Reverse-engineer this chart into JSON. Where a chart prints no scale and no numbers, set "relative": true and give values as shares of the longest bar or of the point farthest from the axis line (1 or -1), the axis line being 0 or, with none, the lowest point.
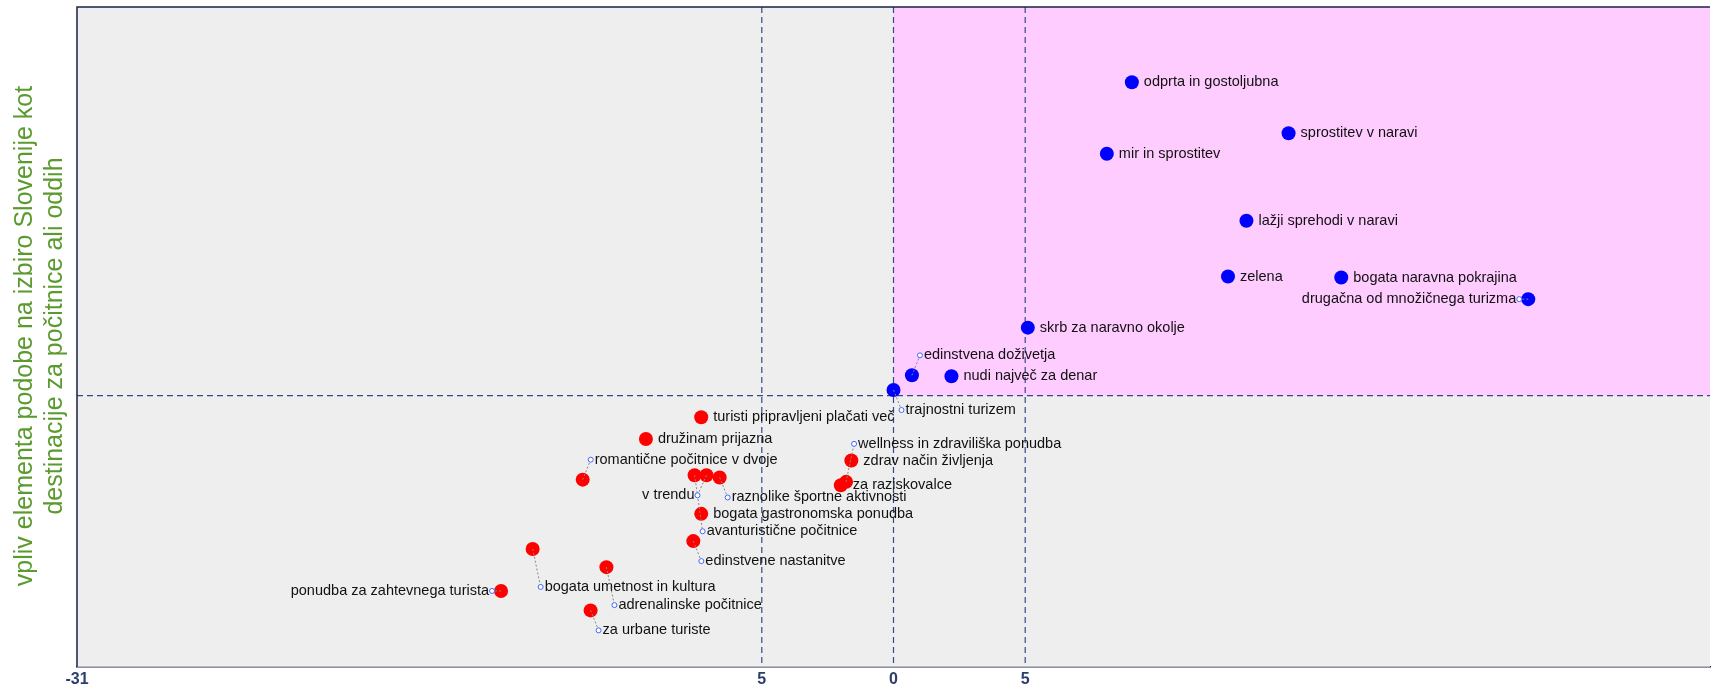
{
  "chart_data": {
    "type": "scatter",
    "ylabel": "vpliv elementa podobe na izbiro Slovenije kot destinacije za počitnice ali oddih",
    "relative": true,
    "xlim": [
      -31,
      31
    ],
    "xticks": [
      -31,
      {
        "value": -5,
        "label": "5"
      },
      0,
      5
    ],
    "tick_labels": "x",
    "legend": false,
    "marker": "circle",
    "series": [
      {
        "color": "#0000ff",
        "x": [
          9.05,
          15.0,
          8.1,
          13.4,
          17.0,
          12.7,
          24.1,
          5.1,
          0.7,
          2.2,
          0.0
        ],
        "values": [
          1.0,
          0.837,
          0.772,
          0.558,
          0.377,
          0.38,
          0.308,
          0.217,
          0.065,
          0.062,
          0.018
        ]
      },
      {
        "color": "#ff0000",
        "x": [
          -11.8,
          -7.3,
          -9.4,
          -6.6,
          -7.55,
          -7.1,
          -1.6,
          -1.8,
          -2.0,
          -7.3,
          -13.7,
          -7.6,
          -10.9,
          -11.5,
          -14.9
        ],
        "values": [
          -0.268,
          -0.069,
          -0.138,
          -0.261,
          -0.254,
          -0.254,
          -0.207,
          -0.275,
          -0.286,
          -0.377,
          -0.489,
          -0.464,
          -0.547,
          -0.685,
          -0.623
        ]
      }
    ],
    "ref_lines": [
      {
        "axis": "x",
        "value": -5,
        "color": "#334a8a",
        "line_style": "dashed"
      },
      {
        "axis": "x",
        "value": 0,
        "color": "#334a8a",
        "line_style": "dashed"
      },
      {
        "axis": "x",
        "value": 5,
        "color": "#334a8a",
        "line_style": "dashed"
      },
      {
        "axis": "y",
        "value": 0,
        "color": "#334a8a",
        "line_style": "dashed"
      }
    ],
    "bands": [
      {
        "axis": "x",
        "from": 0,
        "to": 31,
        "color": "#ffccff"
      }
    ],
    "annotations": [
      {
        "text": "odprta in gostoljubna",
        "x": 9.05,
        "y": 1.0
      },
      {
        "text": "sprostitev v naravi",
        "x": 15.0,
        "y": 0.837
      },
      {
        "text": "mir in sprostitev",
        "x": 8.1,
        "y": 0.772
      },
      {
        "text": "lažji sprehodi v naravi",
        "x": 13.4,
        "y": 0.558
      },
      {
        "text": "bogata naravna pokrajina",
        "x": 17.0,
        "y": 0.377
      },
      {
        "text": "zelena",
        "x": 12.7,
        "y": 0.38
      },
      {
        "text": "drugačna od množičnega turizma",
        "x": 24.1,
        "y": 0.308
      },
      {
        "text": "skrb za naravno okolje",
        "x": 5.1,
        "y": 0.217
      },
      {
        "text": "edinstvena doživetja",
        "x": 0.7,
        "y": 0.065
      },
      {
        "text": "nudi največ za denar",
        "x": 2.2,
        "y": 0.062
      },
      {
        "text": "trajnostni turizem",
        "x": 0.0,
        "y": 0.018
      },
      {
        "text": "romantične počitnice v dvoje",
        "x": -11.8,
        "y": -0.268
      },
      {
        "text": "turisti pripravljeni plačati več",
        "x": -7.3,
        "y": -0.069
      },
      {
        "text": "družinam prijazna",
        "x": -9.4,
        "y": -0.138
      },
      {
        "text": "raznolike športne aktivnosti",
        "x": -6.6,
        "y": -0.261
      },
      {
        "text": "avanturistične počitnice",
        "x": -7.55,
        "y": -0.254
      },
      {
        "text": "v trendu",
        "x": -7.1,
        "y": -0.254
      },
      {
        "text": "zdrav način življenja",
        "x": -1.6,
        "y": -0.207
      },
      {
        "text": "wellness in zdraviliška ponudba",
        "x": -1.8,
        "y": -0.275
      },
      {
        "text": "za raziskovalce",
        "x": -2.0,
        "y": -0.286
      },
      {
        "text": "bogata gastronomska ponudba",
        "x": -7.3,
        "y": -0.377
      },
      {
        "text": "bogata umetnost in kultura",
        "x": -13.7,
        "y": -0.489
      },
      {
        "text": "edinstvene nastanitve",
        "x": -7.6,
        "y": -0.464
      },
      {
        "text": "adrenalinske počitnice",
        "x": -10.9,
        "y": -0.547
      },
      {
        "text": "za urbane turiste",
        "x": -11.5,
        "y": -0.685
      },
      {
        "text": "ponudba za zahtevnega turista",
        "x": -14.9,
        "y": -0.623
      }
    ]
  }
}
